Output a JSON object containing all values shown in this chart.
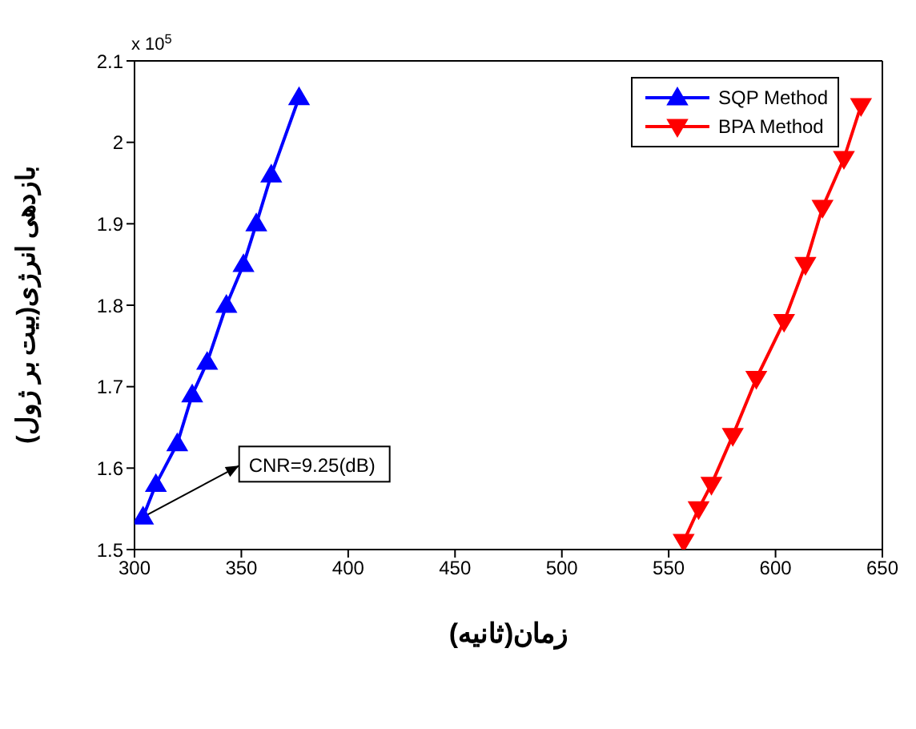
{
  "chart_data": {
    "type": "line",
    "xlabel": "زمان(ثانیه)",
    "ylabel": "بازدهی انرژی(بیت بر ژول)",
    "xlim": [
      300,
      650
    ],
    "xticks": [
      300,
      350,
      400,
      450,
      500,
      550,
      600,
      650
    ],
    "ylim": [
      1.5,
      2.1
    ],
    "yticks": [
      1.5,
      1.6,
      1.7,
      1.8,
      1.9,
      2,
      2.1
    ],
    "legend": "top right",
    "line_style": "solid",
    "series": [
      {
        "name": "SQP Method",
        "color": "#0000ff",
        "marker": "triangle",
        "x": [
          304,
          310,
          320,
          327,
          334,
          343,
          351,
          357,
          364,
          377
        ],
        "values": [
          1.54,
          1.58,
          1.63,
          1.69,
          1.73,
          1.8,
          1.85,
          1.9,
          1.96,
          2.055
        ]
      },
      {
        "name": "BPA Method",
        "color": "#ff0000",
        "marker": "triangle_down",
        "x": [
          557,
          564,
          570,
          580,
          591,
          604,
          614,
          622,
          632,
          640
        ],
        "values": [
          1.51,
          1.55,
          1.58,
          1.64,
          1.71,
          1.78,
          1.85,
          1.92,
          1.98,
          2.045
        ]
      }
    ],
    "annotations": [
      {
        "text": "CNR=9.25(dB)",
        "x": 304,
        "y": 1.54
      },
      "x 10$^{5}$"
    ]
  }
}
